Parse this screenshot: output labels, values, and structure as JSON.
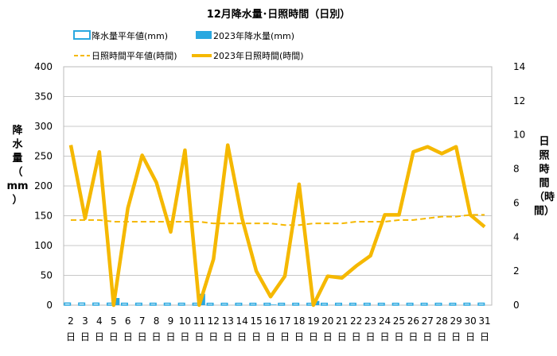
{
  "chart_data": {
    "type": "bar+line",
    "title": "12月降水量･日照時間（日別）",
    "ylabel_left": [
      "降",
      "水",
      "量",
      "（",
      "mm",
      "）"
    ],
    "ylabel_right": [
      "日",
      "照",
      "時",
      "間",
      "（時",
      "間）"
    ],
    "ylim_left": [
      0,
      400
    ],
    "ylim_right": [
      0,
      14
    ],
    "yticks_left": [
      0,
      50,
      100,
      150,
      200,
      250,
      300,
      350,
      400
    ],
    "yticks_right": [
      0,
      2,
      4,
      6,
      8,
      10,
      12,
      14
    ],
    "categories": [
      "2",
      "3",
      "4",
      "5",
      "6",
      "7",
      "8",
      "9",
      "10",
      "11",
      "12",
      "13",
      "14",
      "15",
      "16",
      "17",
      "18",
      "19",
      "20",
      "21",
      "22",
      "23",
      "24",
      "25",
      "26",
      "27",
      "28",
      "29",
      "30",
      "31"
    ],
    "day_suffix": "日",
    "legend": [
      {
        "label": "降水量平年値(mm)",
        "style": "bar-outline",
        "color": "#2AA8E0"
      },
      {
        "label": "2023年降水量(mm)",
        "style": "bar-fill",
        "color": "#2AA8E0"
      },
      {
        "label": "日照時間平年値(時間)",
        "style": "dashed-line",
        "color": "#F5B800"
      },
      {
        "label": "2023年日照時間(時間)",
        "style": "thick-line",
        "color": "#F5B800"
      }
    ],
    "series": [
      {
        "name": "降水量平年値(mm)",
        "axis": "left",
        "type": "bar",
        "values": [
          3.5,
          3.5,
          3.4,
          3.3,
          3.2,
          3.2,
          3.2,
          3.2,
          3.2,
          3.2,
          3.1,
          3.1,
          3.1,
          3.1,
          3.1,
          3.1,
          3.1,
          3.1,
          3.1,
          3.1,
          3.1,
          3.1,
          3.1,
          3.1,
          3.1,
          3.1,
          3.1,
          3.1,
          3.2,
          3.3
        ]
      },
      {
        "name": "2023年降水量(mm)",
        "axis": "left",
        "type": "bar",
        "values": [
          0,
          0,
          0,
          12,
          0,
          0,
          0,
          0,
          0,
          19,
          0,
          0,
          0,
          0,
          1,
          0,
          0,
          7,
          0,
          0,
          0,
          0,
          0,
          0,
          0,
          0,
          0,
          0,
          0,
          0
        ]
      },
      {
        "name": "日照時間平年値(時間)",
        "axis": "right",
        "type": "line",
        "values": [
          5.0,
          5.0,
          5.0,
          4.9,
          4.9,
          4.9,
          4.9,
          4.9,
          4.9,
          4.9,
          4.8,
          4.8,
          4.8,
          4.8,
          4.8,
          4.7,
          4.7,
          4.8,
          4.8,
          4.8,
          4.9,
          4.9,
          4.9,
          5.0,
          5.0,
          5.1,
          5.2,
          5.2,
          5.3,
          5.3
        ]
      },
      {
        "name": "2023年日照時間(時間)",
        "axis": "right",
        "type": "line",
        "values": [
          9.4,
          5.1,
          9.0,
          0.0,
          5.7,
          8.8,
          7.2,
          4.3,
          9.1,
          0.0,
          2.7,
          9.4,
          5.1,
          2.0,
          0.5,
          1.7,
          7.1,
          0.0,
          1.7,
          1.6,
          2.3,
          2.9,
          5.3,
          5.3,
          9.0,
          9.3,
          8.9,
          9.3,
          5.3,
          4.6
        ]
      }
    ],
    "colors": {
      "rain": "#2AA8E0",
      "sun": "#F5B800",
      "grid": "#c8c8c8"
    }
  }
}
